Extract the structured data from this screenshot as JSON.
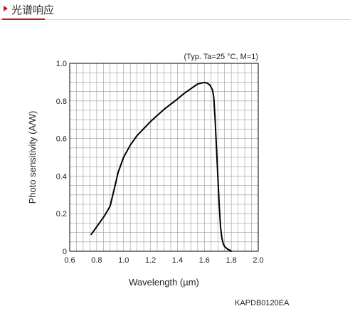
{
  "header": {
    "title": "光谱响应",
    "accent_color": "#c4161c"
  },
  "note": "KAPDB0120EA",
  "chart_data": {
    "type": "line",
    "title": "",
    "annotation": "(Typ. Ta=25 °C, M=1)",
    "xlabel": "Wavelength (µm)",
    "ylabel": "Photo sensitivity (A/W)",
    "xlim": [
      0.6,
      2.0
    ],
    "ylim": [
      0,
      1.0
    ],
    "x_ticks": [
      "0.6",
      "0.8",
      "1.0",
      "1.2",
      "1.4",
      "1.6",
      "1.8",
      "2.0"
    ],
    "y_ticks": [
      "0",
      "0.2",
      "0.4",
      "0.6",
      "0.8",
      "1.0"
    ],
    "grid": true,
    "grid_x_step": 0.05,
    "grid_y_step": 0.05,
    "line_color": "#000000",
    "series": [
      {
        "name": "",
        "x": [
          0.76,
          0.78,
          0.8,
          0.83,
          0.86,
          0.9,
          0.93,
          0.96,
          1.0,
          1.05,
          1.1,
          1.2,
          1.3,
          1.4,
          1.45,
          1.5,
          1.55,
          1.58,
          1.6,
          1.62,
          1.64,
          1.66,
          1.67,
          1.68,
          1.69,
          1.7,
          1.71,
          1.72,
          1.73,
          1.74,
          1.75,
          1.77,
          1.79,
          1.8
        ],
        "y": [
          0.09,
          0.11,
          0.13,
          0.16,
          0.19,
          0.24,
          0.33,
          0.42,
          0.5,
          0.565,
          0.615,
          0.69,
          0.755,
          0.81,
          0.84,
          0.865,
          0.89,
          0.895,
          0.898,
          0.895,
          0.885,
          0.86,
          0.82,
          0.7,
          0.55,
          0.4,
          0.25,
          0.13,
          0.07,
          0.04,
          0.025,
          0.012,
          0.005,
          0.0
        ]
      }
    ]
  }
}
